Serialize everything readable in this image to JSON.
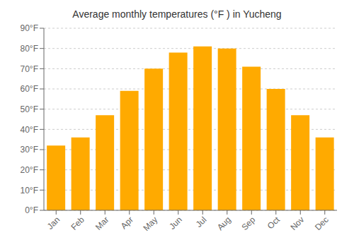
{
  "chart_data": {
    "type": "bar",
    "title": "Average monthly temperatures (°F ) in Yucheng",
    "categories": [
      "Jan",
      "Feb",
      "Mar",
      "Apr",
      "May",
      "Jun",
      "Jul",
      "Aug",
      "Sep",
      "Oct",
      "Nov",
      "Dec"
    ],
    "values": [
      32,
      36,
      47,
      59,
      70,
      78,
      81,
      80,
      71,
      60,
      47,
      36
    ],
    "color": "#FFAA00",
    "ylim": [
      0,
      90
    ],
    "yticks": [
      {
        "value": 0,
        "label": "0°F"
      },
      {
        "value": 10,
        "label": "10°F"
      },
      {
        "value": 20,
        "label": "20°F"
      },
      {
        "value": 30,
        "label": "30°F"
      },
      {
        "value": 40,
        "label": "40°F"
      },
      {
        "value": 50,
        "label": "50°F"
      },
      {
        "value": 60,
        "label": "60°F"
      },
      {
        "value": 70,
        "label": "70°F"
      },
      {
        "value": 80,
        "label": "80°F"
      },
      {
        "value": 90,
        "label": "90°F"
      }
    ],
    "grid": true
  }
}
